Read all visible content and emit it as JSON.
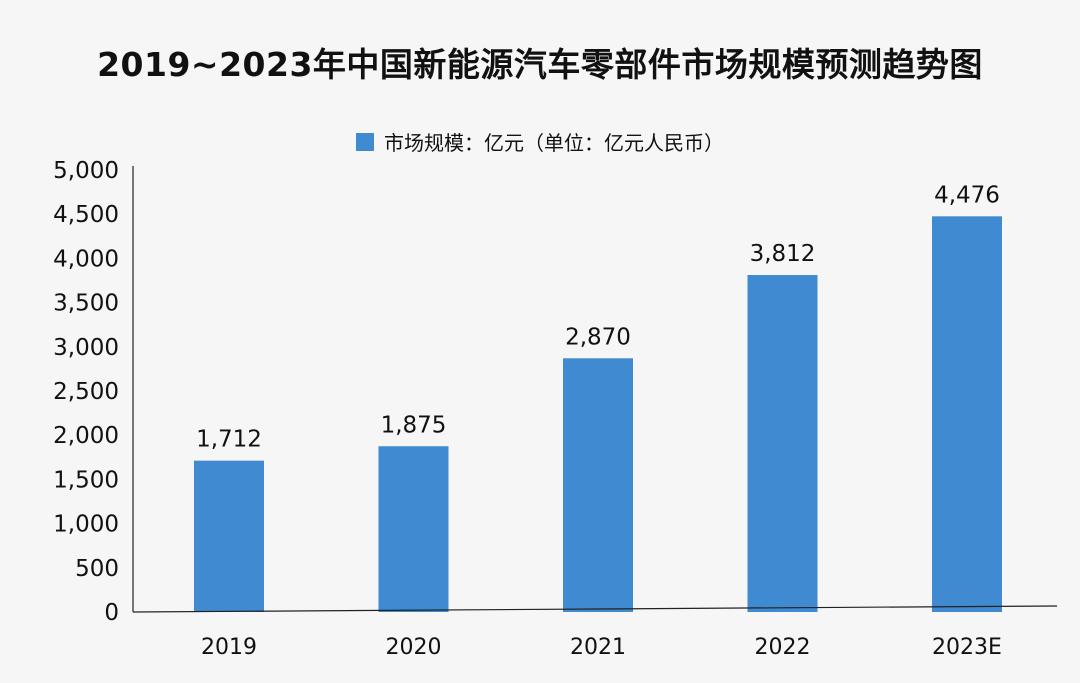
{
  "chart_data": {
    "type": "bar",
    "title": "2019~2023年中国新能源汽车零部件市场规模预测趋势图",
    "legend": [
      "市场规模：亿元（单位：亿元人民币）"
    ],
    "legend_position": "top-center",
    "categories": [
      "2019",
      "2020",
      "2021",
      "2022",
      "2023E"
    ],
    "series": [
      {
        "name": "市场规模：亿元（单位：亿元人民币）",
        "values": [
          1712,
          1875,
          2870,
          3812,
          4476
        ],
        "data_labels": [
          "1,712",
          "1,875",
          "2,870",
          "3,812",
          "4,476"
        ],
        "color": "#3f8ad0"
      }
    ],
    "yticks": [
      "0",
      "500",
      "1,000",
      "1,500",
      "2,000",
      "2,500",
      "3,000",
      "3,500",
      "4,000",
      "4,500",
      "5,000"
    ],
    "ylim": [
      0,
      5000
    ],
    "grid": false
  }
}
